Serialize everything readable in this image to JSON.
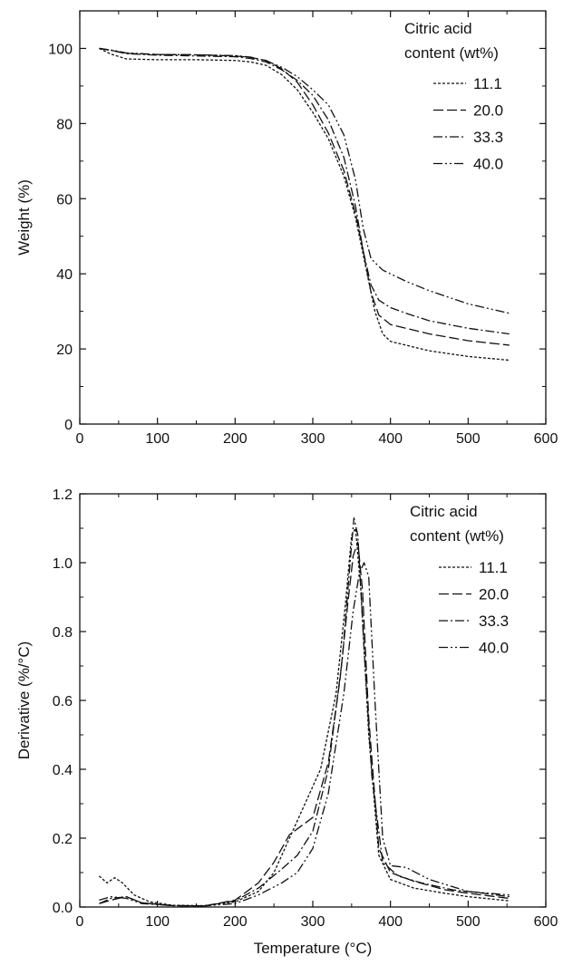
{
  "chart_data": [
    {
      "type": "line",
      "title": "",
      "xlabel": "",
      "ylabel": "Weight (%)",
      "xlim": [
        0,
        600
      ],
      "ylim": [
        0,
        110
      ],
      "x_ticks": [
        0,
        100,
        200,
        300,
        400,
        500,
        600
      ],
      "y_ticks": [
        0,
        20,
        40,
        60,
        80,
        100
      ],
      "grid": false,
      "legend": {
        "title_lines": [
          "Citric acid",
          "content (wt%)"
        ],
        "placement": "top-right"
      },
      "series": [
        {
          "name": "11.1",
          "dash": "3,2",
          "points": [
            [
              25,
              100
            ],
            [
              40,
              98.5
            ],
            [
              60,
              97.2
            ],
            [
              100,
              97
            ],
            [
              150,
              97
            ],
            [
              200,
              96.8
            ],
            [
              220,
              96.4
            ],
            [
              240,
              95.5
            ],
            [
              260,
              93
            ],
            [
              280,
              89
            ],
            [
              300,
              83
            ],
            [
              320,
              76
            ],
            [
              340,
              66
            ],
            [
              355,
              55
            ],
            [
              370,
              40
            ],
            [
              380,
              30
            ],
            [
              390,
              24
            ],
            [
              400,
              22
            ],
            [
              420,
              21
            ],
            [
              450,
              19.5
            ],
            [
              500,
              18
            ],
            [
              553,
              17
            ]
          ]
        },
        {
          "name": "20.0",
          "dash": "11,4",
          "points": [
            [
              25,
              100
            ],
            [
              40,
              99.5
            ],
            [
              60,
              98.7
            ],
            [
              100,
              98.4
            ],
            [
              150,
              98.3
            ],
            [
              200,
              98
            ],
            [
              220,
              97.6
            ],
            [
              240,
              96.8
            ],
            [
              260,
              94.6
            ],
            [
              280,
              91
            ],
            [
              300,
              85
            ],
            [
              320,
              77.5
            ],
            [
              340,
              67.5
            ],
            [
              355,
              56
            ],
            [
              365,
              46
            ],
            [
              375,
              35
            ],
            [
              385,
              29
            ],
            [
              400,
              26.5
            ],
            [
              420,
              25.5
            ],
            [
              450,
              24
            ],
            [
              500,
              22.2
            ],
            [
              553,
              21
            ]
          ]
        },
        {
          "name": "33.3",
          "dash": "10,3,2,3",
          "points": [
            [
              25,
              100
            ],
            [
              40,
              99.5
            ],
            [
              60,
              98.6
            ],
            [
              100,
              98.2
            ],
            [
              150,
              98
            ],
            [
              200,
              97.8
            ],
            [
              220,
              97.3
            ],
            [
              240,
              96.4
            ],
            [
              260,
              94.3
            ],
            [
              280,
              91.5
            ],
            [
              300,
              87.5
            ],
            [
              320,
              81
            ],
            [
              340,
              71
            ],
            [
              355,
              58
            ],
            [
              365,
              46
            ],
            [
              375,
              37
            ],
            [
              385,
              33
            ],
            [
              400,
              31
            ],
            [
              420,
              29.5
            ],
            [
              450,
              27.5
            ],
            [
              500,
              25.5
            ],
            [
              553,
              24
            ]
          ]
        },
        {
          "name": "40.0",
          "dash": "10,3,2,3,2,3",
          "points": [
            [
              25,
              100
            ],
            [
              40,
              99.6
            ],
            [
              60,
              98.8
            ],
            [
              100,
              98.4
            ],
            [
              150,
              98.3
            ],
            [
              200,
              98.1
            ],
            [
              220,
              97.7
            ],
            [
              240,
              96.7
            ],
            [
              260,
              95
            ],
            [
              280,
              92.5
            ],
            [
              300,
              89
            ],
            [
              320,
              85
            ],
            [
              340,
              77
            ],
            [
              355,
              65
            ],
            [
              365,
              52
            ],
            [
              375,
              44
            ],
            [
              390,
              41
            ],
            [
              400,
              40
            ],
            [
              420,
              38
            ],
            [
              450,
              35.5
            ],
            [
              500,
              32
            ],
            [
              553,
              29.5
            ]
          ]
        }
      ]
    },
    {
      "type": "line",
      "title": "",
      "xlabel": "Temperature (°C)",
      "ylabel": "Derivative (%/°C)",
      "xlim": [
        0,
        600
      ],
      "ylim": [
        0,
        1.2
      ],
      "x_ticks": [
        0,
        100,
        200,
        300,
        400,
        500,
        600
      ],
      "y_ticks": [
        0.0,
        0.2,
        0.4,
        0.6,
        0.8,
        1.0,
        1.2
      ],
      "y_tick_labels": [
        "0.0",
        "0.2",
        "0.4",
        "0.6",
        "0.8",
        "1.0",
        "1.2"
      ],
      "grid": false,
      "legend": {
        "title_lines": [
          "Citric acid",
          "content (wt%)"
        ],
        "placement": "top-right"
      },
      "series": [
        {
          "name": "11.1",
          "dash": "3,2",
          "points": [
            [
              25,
              0.09
            ],
            [
              35,
              0.07
            ],
            [
              45,
              0.085
            ],
            [
              55,
              0.07
            ],
            [
              70,
              0.035
            ],
            [
              90,
              0.015
            ],
            [
              120,
              0.005
            ],
            [
              160,
              0.004
            ],
            [
              200,
              0.015
            ],
            [
              230,
              0.045
            ],
            [
              250,
              0.1
            ],
            [
              270,
              0.2
            ],
            [
              290,
              0.3
            ],
            [
              310,
              0.4
            ],
            [
              330,
              0.62
            ],
            [
              342,
              0.88
            ],
            [
              350,
              1.08
            ],
            [
              355,
              1.1
            ],
            [
              362,
              0.92
            ],
            [
              372,
              0.5
            ],
            [
              385,
              0.15
            ],
            [
              400,
              0.08
            ],
            [
              430,
              0.055
            ],
            [
              470,
              0.04
            ],
            [
              500,
              0.03
            ],
            [
              553,
              0.018
            ]
          ]
        },
        {
          "name": "20.0",
          "dash": "11,4",
          "points": [
            [
              25,
              0.01
            ],
            [
              40,
              0.02
            ],
            [
              60,
              0.03
            ],
            [
              80,
              0.012
            ],
            [
              120,
              0.004
            ],
            [
              160,
              0.003
            ],
            [
              200,
              0.02
            ],
            [
              230,
              0.07
            ],
            [
              250,
              0.13
            ],
            [
              270,
              0.21
            ],
            [
              285,
              0.235
            ],
            [
              300,
              0.26
            ],
            [
              320,
              0.42
            ],
            [
              335,
              0.66
            ],
            [
              345,
              0.88
            ],
            [
              352,
              1.02
            ],
            [
              358,
              1.06
            ],
            [
              364,
              0.92
            ],
            [
              372,
              0.55
            ],
            [
              385,
              0.17
            ],
            [
              400,
              0.1
            ],
            [
              430,
              0.075
            ],
            [
              470,
              0.05
            ],
            [
              500,
              0.04
            ],
            [
              553,
              0.025
            ]
          ]
        },
        {
          "name": "33.3",
          "dash": "10,3,2,3",
          "points": [
            [
              25,
              0.01
            ],
            [
              40,
              0.025
            ],
            [
              60,
              0.03
            ],
            [
              80,
              0.012
            ],
            [
              120,
              0.004
            ],
            [
              160,
              0.003
            ],
            [
              200,
              0.018
            ],
            [
              230,
              0.055
            ],
            [
              260,
              0.11
            ],
            [
              280,
              0.15
            ],
            [
              300,
              0.22
            ],
            [
              320,
              0.4
            ],
            [
              338,
              0.72
            ],
            [
              348,
              1.0
            ],
            [
              353,
              1.13
            ],
            [
              358,
              1.08
            ],
            [
              366,
              0.75
            ],
            [
              376,
              0.38
            ],
            [
              390,
              0.13
            ],
            [
              410,
              0.09
            ],
            [
              440,
              0.07
            ],
            [
              480,
              0.05
            ],
            [
              520,
              0.04
            ],
            [
              553,
              0.03
            ]
          ]
        },
        {
          "name": "40.0",
          "dash": "10,3,2,3,2,3",
          "points": [
            [
              25,
              0.02
            ],
            [
              40,
              0.03
            ],
            [
              60,
              0.025
            ],
            [
              80,
              0.01
            ],
            [
              120,
              0.004
            ],
            [
              160,
              0.003
            ],
            [
              200,
              0.01
            ],
            [
              230,
              0.035
            ],
            [
              260,
              0.07
            ],
            [
              280,
              0.1
            ],
            [
              300,
              0.17
            ],
            [
              320,
              0.33
            ],
            [
              340,
              0.62
            ],
            [
              352,
              0.86
            ],
            [
              360,
              0.97
            ],
            [
              366,
              1.0
            ],
            [
              372,
              0.96
            ],
            [
              380,
              0.6
            ],
            [
              390,
              0.2
            ],
            [
              400,
              0.12
            ],
            [
              420,
              0.115
            ],
            [
              450,
              0.08
            ],
            [
              500,
              0.045
            ],
            [
              553,
              0.035
            ]
          ]
        }
      ]
    }
  ]
}
